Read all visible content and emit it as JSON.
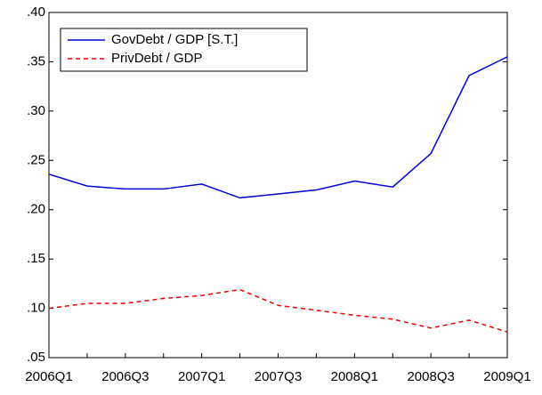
{
  "chart_data": {
    "type": "line",
    "categories": [
      "2006Q1",
      null,
      "2006Q3",
      null,
      "2007Q1",
      null,
      "2007Q3",
      null,
      "2008Q1",
      null,
      "2008Q3",
      null,
      "2009Q1"
    ],
    "series": [
      {
        "name": "GovDebt / GDP [S.T.]",
        "color": "#0000dd",
        "dash": "solid",
        "values": [
          0.236,
          0.224,
          0.221,
          0.221,
          0.226,
          0.212,
          0.216,
          0.22,
          0.229,
          0.223,
          0.257,
          0.336,
          0.355
        ]
      },
      {
        "name": "PrivDebt / GDP",
        "color": "#ee0000",
        "dash": "dashed",
        "values": [
          0.1,
          0.105,
          0.105,
          0.11,
          0.113,
          0.119,
          0.103,
          0.098,
          0.093,
          0.089,
          0.08,
          0.088,
          0.076
        ]
      }
    ],
    "ylim": [
      0.05,
      0.4
    ],
    "yticks": [
      {
        "value": 0.05,
        "label": ".05"
      },
      {
        "value": 0.1,
        "label": ".10"
      },
      {
        "value": 0.15,
        "label": ".15"
      },
      {
        "value": 0.2,
        "label": ".20"
      },
      {
        "value": 0.25,
        "label": ".25"
      },
      {
        "value": 0.3,
        "label": ".30"
      },
      {
        "value": 0.35,
        "label": ".35"
      },
      {
        "value": 0.4,
        "label": ".40"
      }
    ],
    "legend": "top-left"
  }
}
